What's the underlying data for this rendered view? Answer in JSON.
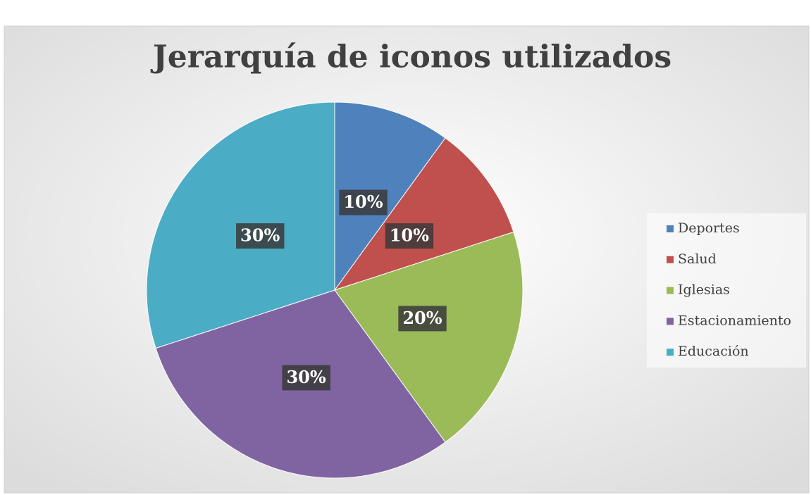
{
  "chart_data": {
    "type": "pie",
    "title": "Jerarquía de iconos utilizados",
    "categories": [
      "Deportes",
      "Salud",
      "Iglesias",
      "Estacionamiento",
      "Educación"
    ],
    "values": [
      10,
      10,
      20,
      30,
      30
    ],
    "value_labels": [
      "10%",
      "10%",
      "20%",
      "30%",
      "30%"
    ],
    "colors": [
      "#4f81bd",
      "#c0504d",
      "#9bbb59",
      "#8064a2",
      "#4bacc6"
    ],
    "legend": "right"
  }
}
